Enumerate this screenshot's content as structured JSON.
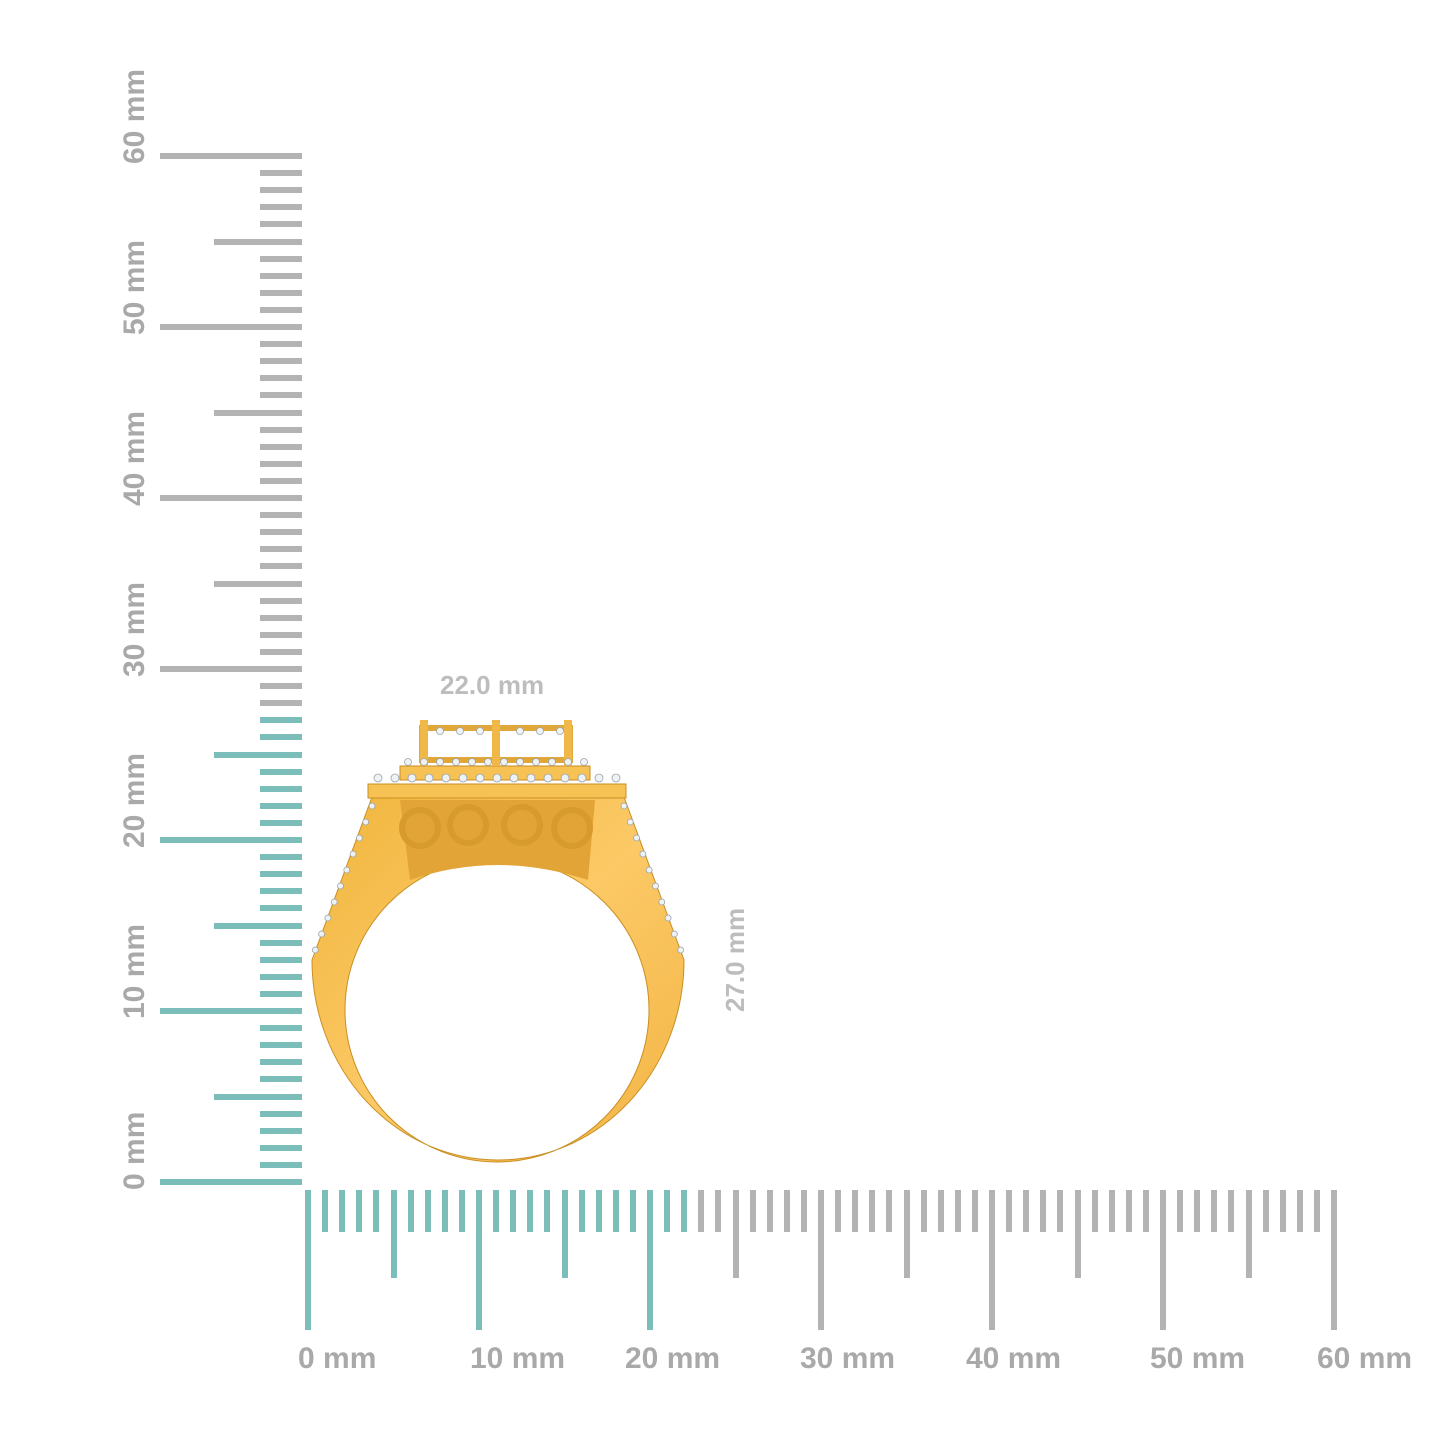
{
  "rulers": {
    "unit": "mm",
    "max": 60,
    "horizontal_labels": [
      "0 mm",
      "10 mm",
      "20 mm",
      "30 mm",
      "40 mm",
      "50 mm",
      "60 mm"
    ],
    "vertical_labels": [
      "0 mm",
      "10 mm",
      "20 mm",
      "30 mm",
      "40 mm",
      "50 mm",
      "60 mm"
    ],
    "highlight_width_mm": 22,
    "highlight_height_mm": 27,
    "colors": {
      "highlight": "#7bbdb8",
      "normal": "#b3b3b3",
      "label": "#a9a9a9"
    }
  },
  "dimensions": {
    "width_label": "22.0 mm",
    "height_label": "27.0 mm"
  },
  "product": {
    "type": "ring",
    "metal_color": "#f5bd4f",
    "diamond_color": "#eef2f5"
  }
}
